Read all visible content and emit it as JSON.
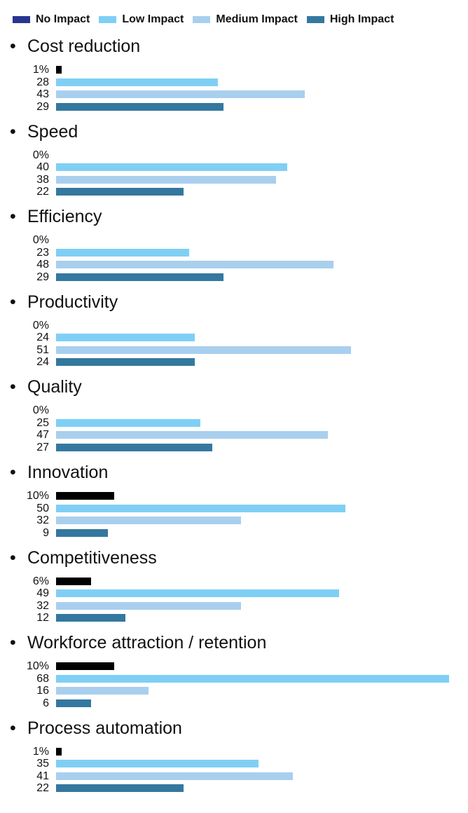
{
  "chart_data": {
    "type": "bar",
    "orientation": "horizontal",
    "unit": "%",
    "legend": {
      "placement": "top",
      "entries": [
        "No Impact",
        "Low Impact",
        "Medium Impact",
        "High Impact"
      ]
    },
    "legend_colors": [
      "#2a3590",
      "#7fcff5",
      "#a9cfee",
      "#34789f"
    ],
    "bar_colors": [
      "#000000",
      "#7fcff5",
      "#a9cfee",
      "#34789f"
    ],
    "grid": false,
    "xlim": [
      0,
      68
    ],
    "categories": [
      "Cost reduction",
      "Speed",
      "Efficiency",
      "Productivity",
      "Quality",
      "Innovation",
      "Competitiveness",
      "Workforce attraction / retention",
      "Process automation"
    ],
    "series": [
      {
        "name": "No Impact",
        "values": [
          1,
          0,
          0,
          0,
          0,
          10,
          6,
          10,
          1
        ]
      },
      {
        "name": "Low Impact",
        "values": [
          28,
          40,
          23,
          24,
          25,
          50,
          49,
          68,
          35
        ]
      },
      {
        "name": "Medium Impact",
        "values": [
          43,
          38,
          48,
          51,
          47,
          32,
          32,
          16,
          41
        ]
      },
      {
        "name": "High Impact",
        "values": [
          29,
          22,
          29,
          24,
          27,
          9,
          12,
          6,
          22
        ]
      }
    ],
    "bullet": "•"
  }
}
